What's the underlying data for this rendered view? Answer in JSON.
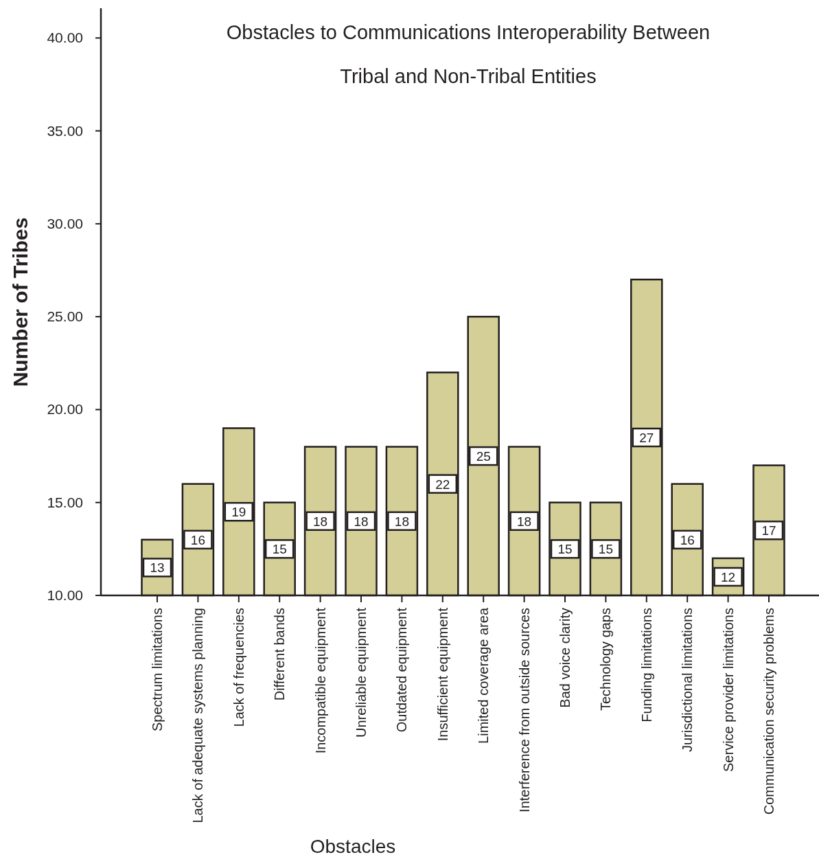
{
  "chart_data": {
    "type": "bar",
    "title": "Obstacles to Communications Interoperability Between\nTribal and Non-Tribal Entities",
    "xlabel": "Obstacles",
    "ylabel": "Number of Tribes",
    "categories": [
      "Spectrum limitations",
      "Lack of adequate systems planning",
      "Lack of frequencies",
      "Different bands",
      "Incompatible equipment",
      "Unreliable equipment",
      "Outdated equipment",
      "Insufficient equipment",
      "Limited coverage area",
      "Interference from outside sources",
      "Bad voice clarity",
      "Technology gaps",
      "Funding limitations",
      "Jurisdictional limitations",
      "Service provider limitations",
      "Communication security problems"
    ],
    "values": [
      13,
      16,
      19,
      15,
      18,
      18,
      18,
      22,
      25,
      18,
      15,
      15,
      27,
      16,
      12,
      17
    ],
    "color": "#d4cf96",
    "data_labels": true,
    "ylim": [
      10,
      41.6
    ],
    "yticks": [
      {
        "value": 10,
        "label": "10.00"
      },
      {
        "value": 15,
        "label": "15.00"
      },
      {
        "value": 20,
        "label": "20.00"
      },
      {
        "value": 25,
        "label": "25.00"
      },
      {
        "value": 30,
        "label": "30.00"
      },
      {
        "value": 35,
        "label": "35.00"
      },
      {
        "value": 40,
        "label": "40.00"
      }
    ]
  }
}
